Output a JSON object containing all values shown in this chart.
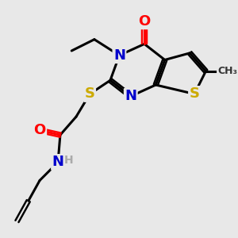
{
  "bg_color": "#e8e8e8",
  "atom_colors": {
    "N": "#0000cc",
    "O": "#ff0000",
    "S": "#ccaa00",
    "H": "#aaaaaa"
  },
  "bond_color": "#000000",
  "bond_width": 2.2,
  "font_size_atoms": 13,
  "font_size_small": 10
}
